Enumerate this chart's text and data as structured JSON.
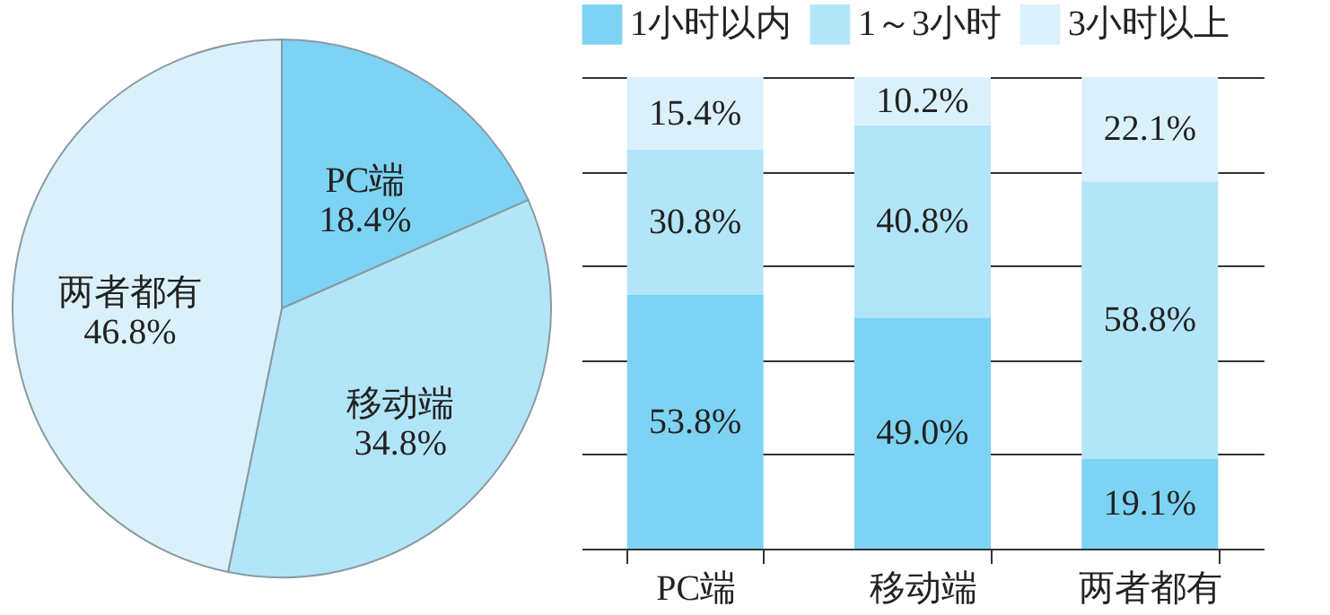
{
  "chart_data": [
    {
      "type": "pie",
      "categories": [
        "PC端",
        "移动端",
        "两者都有"
      ],
      "values": [
        18.4,
        34.8,
        46.8
      ],
      "colors": [
        "#7dd3f3",
        "#b3e5f8",
        "#daf1fb"
      ],
      "value_labels": [
        "18.4%",
        "34.8%",
        "46.8%"
      ]
    },
    {
      "type": "bar",
      "stacked": true,
      "categories": [
        "PC端",
        "移动端",
        "两者都有"
      ],
      "legend": "top",
      "grid": "y",
      "ylim": [
        0,
        100
      ],
      "yticks": [
        {
          "value": 0,
          "label": null
        },
        {
          "value": 20,
          "label": null
        },
        {
          "value": 40,
          "label": null
        },
        {
          "value": 60,
          "label": null
        },
        {
          "value": 80,
          "label": null
        },
        {
          "value": 100,
          "label": null
        }
      ],
      "tick_labels": "x",
      "series": [
        {
          "name": "1小时以内",
          "color": "#7dd3f3",
          "values": [
            53.8,
            49.0,
            19.1
          ],
          "value_labels": [
            "53.8%",
            "49.0%",
            "19.1%"
          ]
        },
        {
          "name": "1～3小时",
          "color": "#b3e5f8",
          "values": [
            30.8,
            40.8,
            58.8
          ],
          "value_labels": [
            "30.8%",
            "40.8%",
            "58.8%"
          ]
        },
        {
          "name": "3小时以上",
          "color": "#daf1fb",
          "values": [
            15.4,
            10.2,
            22.1
          ],
          "value_labels": [
            "15.4%",
            "10.2%",
            "22.1%"
          ]
        }
      ]
    }
  ]
}
